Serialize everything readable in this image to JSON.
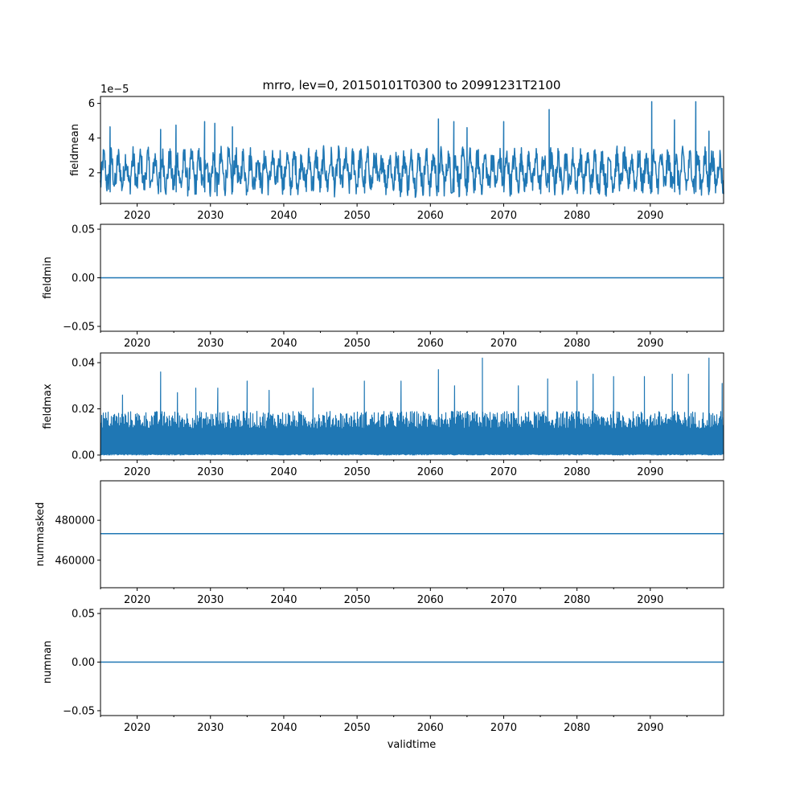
{
  "chart_data": {
    "title": "mrro, lev=0, 20150101T0300 to 20991231T2100",
    "xlabel": "validtime",
    "x_range": [
      2015.0,
      2100.0
    ],
    "x_tick_labels": [
      "2020",
      "2030",
      "2040",
      "2050",
      "2060",
      "2070",
      "2080",
      "2090"
    ],
    "x_tick_values": [
      2020,
      2030,
      2040,
      2050,
      2060,
      2070,
      2080,
      2090
    ],
    "line_color": "#1f77b4",
    "panels": [
      {
        "type": "line",
        "ylabel": "fieldmean",
        "ylim": [
          2.3e-06,
          6.4e-05
        ],
        "y_tick_values": [
          2e-05,
          4e-05,
          6e-05
        ],
        "y_tick_labels": [
          "2",
          "4",
          "6"
        ],
        "offset_text": "1e−5",
        "series_description": "seasonal oscillation between about 0.5e-5 and 4e-5 with occasional peaks",
        "typical_low": 9e-06,
        "typical_high": 3.5e-05,
        "peaks": [
          [
            2016.3,
            4.65e-05
          ],
          [
            2023.2,
            4.5e-05
          ],
          [
            2025.3,
            4.75e-05
          ],
          [
            2029.2,
            4.95e-05
          ],
          [
            2030.6,
            4.85e-05
          ],
          [
            2033.0,
            4.65e-05
          ],
          [
            2061.1,
            5.1e-05
          ],
          [
            2063.2,
            4.95e-05
          ],
          [
            2065.0,
            4.6e-05
          ],
          [
            2070.0,
            4.95e-05
          ],
          [
            2076.2,
            5.65e-05
          ],
          [
            2090.2,
            6.1e-05
          ],
          [
            2093.3,
            5.05e-05
          ],
          [
            2096.2,
            6.1e-05
          ],
          [
            2098.0,
            4.4e-05
          ]
        ]
      },
      {
        "type": "line",
        "ylabel": "fieldmin",
        "ylim": [
          -0.055,
          0.055
        ],
        "y_tick_values": [
          -0.05,
          0.0,
          0.05
        ],
        "y_tick_labels": [
          "−0.05",
          "0.00",
          "0.05"
        ],
        "constant_value": 0.0
      },
      {
        "type": "line",
        "ylabel": "fieldmax",
        "ylim": [
          -0.0021,
          0.0442
        ],
        "y_tick_values": [
          0.0,
          0.02,
          0.04
        ],
        "y_tick_labels": [
          "0.00",
          "0.02",
          "0.04"
        ],
        "series_description": "dense high-frequency signal between near 0 and about 0.02 with spikes",
        "typical_low": 0.0005,
        "typical_high": 0.019,
        "peaks": [
          [
            2018.0,
            0.026
          ],
          [
            2023.2,
            0.036
          ],
          [
            2025.5,
            0.027
          ],
          [
            2028.0,
            0.029
          ],
          [
            2031.0,
            0.029
          ],
          [
            2035.0,
            0.032
          ],
          [
            2038.0,
            0.028
          ],
          [
            2044.0,
            0.029
          ],
          [
            2051.0,
            0.032
          ],
          [
            2056.0,
            0.032
          ],
          [
            2061.1,
            0.037
          ],
          [
            2063.3,
            0.03
          ],
          [
            2067.1,
            0.042
          ],
          [
            2072.0,
            0.03
          ],
          [
            2076.0,
            0.033
          ],
          [
            2080.0,
            0.032
          ],
          [
            2082.2,
            0.035
          ],
          [
            2085.0,
            0.034
          ],
          [
            2089.2,
            0.034
          ],
          [
            2093.0,
            0.035
          ],
          [
            2095.2,
            0.035
          ],
          [
            2098.0,
            0.042
          ],
          [
            2099.8,
            0.031
          ]
        ]
      },
      {
        "type": "line",
        "ylabel": "nummasked",
        "ylim": [
          446200,
          499800
        ],
        "y_tick_values": [
          460000,
          480000
        ],
        "y_tick_labels": [
          "460000",
          "480000"
        ],
        "constant_value": 473300
      },
      {
        "type": "line",
        "ylabel": "numnan",
        "ylim": [
          -0.055,
          0.055
        ],
        "y_tick_values": [
          -0.05,
          0.0,
          0.05
        ],
        "y_tick_labels": [
          "−0.05",
          "0.00",
          "0.05"
        ],
        "constant_value": 0.0
      }
    ]
  }
}
